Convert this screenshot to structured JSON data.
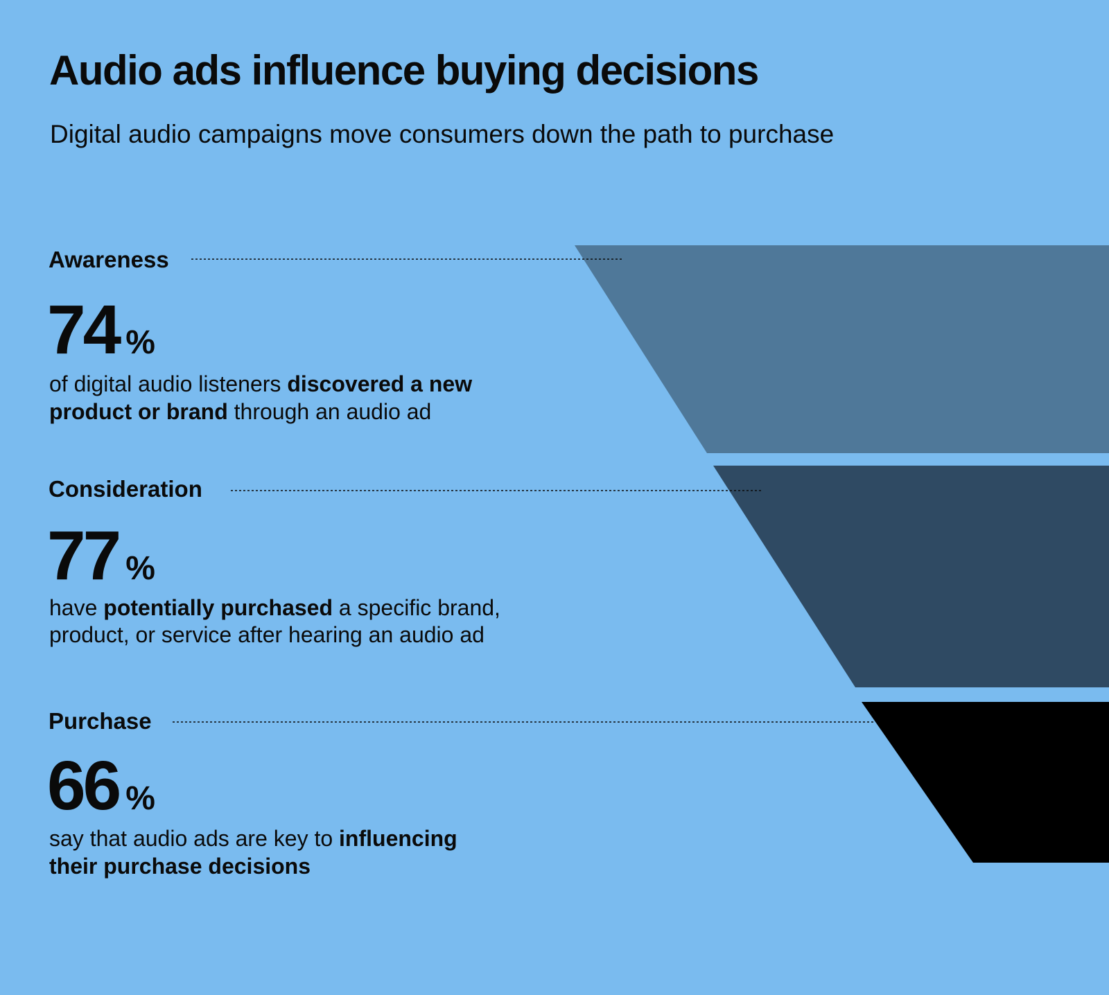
{
  "header": {
    "title": "Audio ads influence buying decisions",
    "subtitle": "Digital audio campaigns move consumers down the path to purchase"
  },
  "stages": [
    {
      "label": "Awareness",
      "value": 74,
      "unit": "%",
      "description": [
        [
          {
            "text": "of digital audio listeners ",
            "bold": false
          },
          {
            "text": "discovered a new",
            "bold": true
          }
        ],
        [
          {
            "text": "product or brand",
            "bold": true
          },
          {
            "text": " through an audio ad",
            "bold": false
          }
        ]
      ]
    },
    {
      "label": "Consideration",
      "value": 77,
      "unit": "%",
      "description": [
        [
          {
            "text": "have ",
            "bold": false
          },
          {
            "text": "potentially purchased",
            "bold": true
          },
          {
            "text": " a specific brand,",
            "bold": false
          }
        ],
        [
          {
            "text": "product, or service after hearing an audio ad",
            "bold": false
          }
        ]
      ]
    },
    {
      "label": "Purchase",
      "value": 66,
      "unit": "%",
      "description": [
        [
          {
            "text": "say that audio ads are key to ",
            "bold": false
          },
          {
            "text": "influencing",
            "bold": true
          }
        ],
        [
          {
            "text": "their purchase decisions",
            "bold": true
          }
        ]
      ]
    }
  ]
}
